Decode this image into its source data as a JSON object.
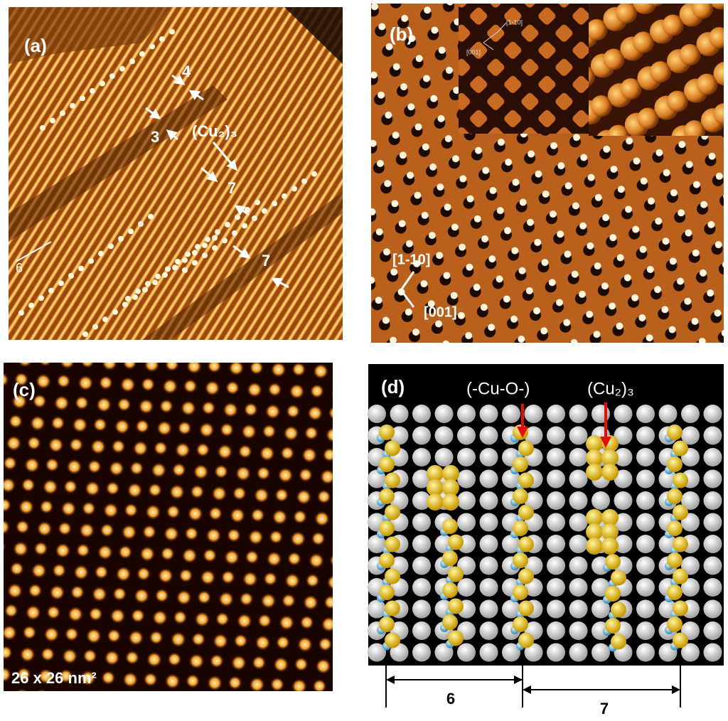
{
  "panel_a": {
    "label": "(a)",
    "annotations": [
      "4",
      "3",
      "(Cu₂)₃",
      "7",
      "7",
      "6"
    ]
  },
  "panel_b": {
    "label": "(b)",
    "directions": [
      "[1-10]",
      "[001]"
    ],
    "inset_directions": [
      "[1-10]",
      "[001]"
    ]
  },
  "panel_c": {
    "label": "(c)",
    "scale": "26 x 26 nm²"
  },
  "panel_d": {
    "label": "(d)",
    "annotations": [
      "(-Cu-O-)",
      "(Cu₂)₃"
    ],
    "spacings": [
      "6",
      "7"
    ]
  }
}
